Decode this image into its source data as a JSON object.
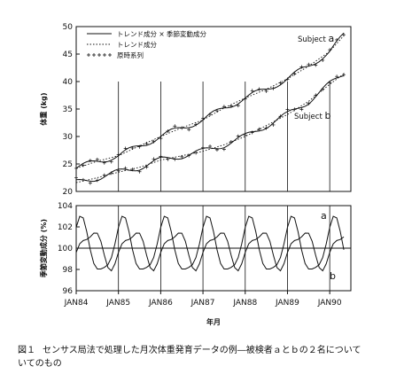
{
  "caption": {
    "number": "図１",
    "text": "センサス局法で処理した月次体重発育データの例―被検者ａとｂの２名について\nいてのもの"
  },
  "chart_data": [
    {
      "type": "line",
      "panel": "top",
      "ylabel": "体重 (kg)",
      "ylim": [
        20,
        50
      ],
      "yticks": [
        "20",
        "25",
        "30",
        "35",
        "40",
        "45",
        "50"
      ],
      "xlim": [
        1984.0,
        1990.5
      ],
      "legend": {
        "placement": "top-left",
        "entries": [
          {
            "label": "トレンド成分 × 季節変動成分",
            "style": "solid"
          },
          {
            "label": "トレンド成分",
            "style": "dotted"
          },
          {
            "label": "原時系列",
            "style": "plus"
          }
        ]
      },
      "annotations": [
        {
          "text": "Subject",
          "big": "a"
        },
        {
          "text": "Subject",
          "big": "b"
        }
      ],
      "series": [
        {
          "subject": "a",
          "x": [
            1984.0,
            1984.5,
            1985.0,
            1985.5,
            1986.0,
            1986.5,
            1987.0,
            1987.5,
            1988.0,
            1988.5,
            1989.0,
            1989.5,
            1990.0,
            1990.35
          ],
          "values": [
            24.2,
            25.5,
            26.5,
            28.3,
            30.0,
            31.6,
            33.0,
            35.2,
            37.0,
            38.6,
            40.5,
            42.8,
            45.5,
            48.5
          ]
        },
        {
          "subject": "b",
          "x": [
            1984.0,
            1984.5,
            1985.0,
            1985.5,
            1986.0,
            1986.5,
            1987.0,
            1987.5,
            1988.0,
            1988.5,
            1989.0,
            1989.5,
            1990.0,
            1990.35
          ],
          "values": [
            21.6,
            22.5,
            23.5,
            24.4,
            25.7,
            26.5,
            27.3,
            28.5,
            30.0,
            32.0,
            34.0,
            36.4,
            39.5,
            41.5
          ]
        }
      ]
    },
    {
      "type": "line",
      "panel": "bottom",
      "ylabel": "季節変動成分 (%)",
      "ylim": [
        96,
        104
      ],
      "yticks": [
        "96",
        "98",
        "100",
        "102",
        "104"
      ],
      "xlim": [
        1984.0,
        1990.5
      ],
      "xlabel": "年月",
      "xticks": [
        "JAN84",
        "JAN85",
        "JAN86",
        "JAN87",
        "JAN88",
        "JAN89",
        "JAN90"
      ],
      "reference_line": 100,
      "annotations": [
        "a",
        "b"
      ],
      "series": [
        {
          "subject": "a",
          "pattern": "peak in late autumn, trough in early summer",
          "amplitude": 2.5
        },
        {
          "subject": "b",
          "pattern": "roughly opposite phase to subject a",
          "amplitude": 1.6
        }
      ]
    }
  ]
}
